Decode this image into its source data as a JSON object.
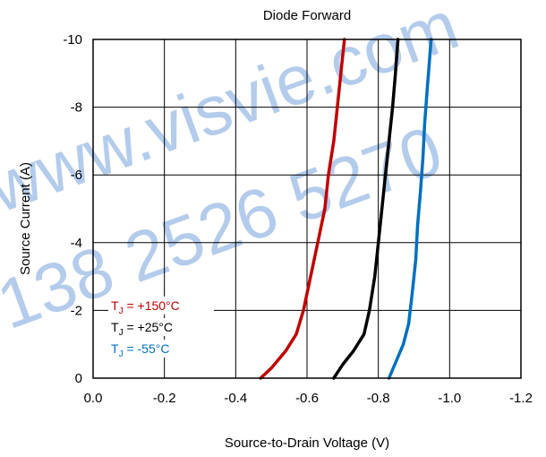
{
  "chart_data": {
    "type": "line",
    "title": "Diode Forward",
    "xlabel": "Source-to-Drain  Voltage (V)",
    "ylabel": "Source  Current (A)",
    "xlim": [
      0,
      -1.2
    ],
    "ylim": [
      0,
      -10
    ],
    "x_ticks": [
      "0.0",
      "-0.2",
      "-0.4",
      "-0.6",
      "-0.8",
      "-1.0",
      "-1.2"
    ],
    "y_ticks": [
      "0",
      "-2",
      "-4",
      "-6",
      "-8",
      "-10"
    ],
    "grid": true,
    "legend_position": "bottom-left",
    "series": [
      {
        "label_prefix": "T",
        "label_sub": "J",
        "label_suffix": " = +150°C",
        "color": "#c00000",
        "points": [
          [
            -0.47,
            0
          ],
          [
            -0.5,
            -0.3
          ],
          [
            -0.54,
            -0.8
          ],
          [
            -0.57,
            -1.3
          ],
          [
            -0.59,
            -2
          ],
          [
            -0.61,
            -3
          ],
          [
            -0.63,
            -4
          ],
          [
            -0.65,
            -5
          ],
          [
            -0.66,
            -6
          ],
          [
            -0.675,
            -7
          ],
          [
            -0.685,
            -8
          ],
          [
            -0.695,
            -9
          ],
          [
            -0.705,
            -10
          ]
        ]
      },
      {
        "label_prefix": "T",
        "label_sub": "J",
        "label_suffix": " = +25°C",
        "color": "#000000",
        "points": [
          [
            -0.675,
            0
          ],
          [
            -0.7,
            -0.4
          ],
          [
            -0.73,
            -0.8
          ],
          [
            -0.76,
            -1.3
          ],
          [
            -0.775,
            -2
          ],
          [
            -0.79,
            -3
          ],
          [
            -0.8,
            -4
          ],
          [
            -0.81,
            -5
          ],
          [
            -0.82,
            -6
          ],
          [
            -0.83,
            -7
          ],
          [
            -0.84,
            -8
          ],
          [
            -0.848,
            -9
          ],
          [
            -0.855,
            -10
          ]
        ]
      },
      {
        "label_prefix": "T",
        "label_sub": "J",
        "label_suffix": " = -55°C",
        "color": "#0070c0",
        "points": [
          [
            -0.83,
            0
          ],
          [
            -0.85,
            -0.5
          ],
          [
            -0.87,
            -1.0
          ],
          [
            -0.885,
            -1.6
          ],
          [
            -0.895,
            -2.5
          ],
          [
            -0.905,
            -3.5
          ],
          [
            -0.91,
            -4.5
          ],
          [
            -0.918,
            -5.5
          ],
          [
            -0.925,
            -6.5
          ],
          [
            -0.93,
            -7.5
          ],
          [
            -0.937,
            -8.5
          ],
          [
            -0.943,
            -9.3
          ],
          [
            -0.948,
            -10
          ]
        ]
      }
    ]
  },
  "watermark": {
    "line1": "www.visvie.com",
    "line2": "138 2526 5270",
    "color": "#5b8fd6"
  }
}
